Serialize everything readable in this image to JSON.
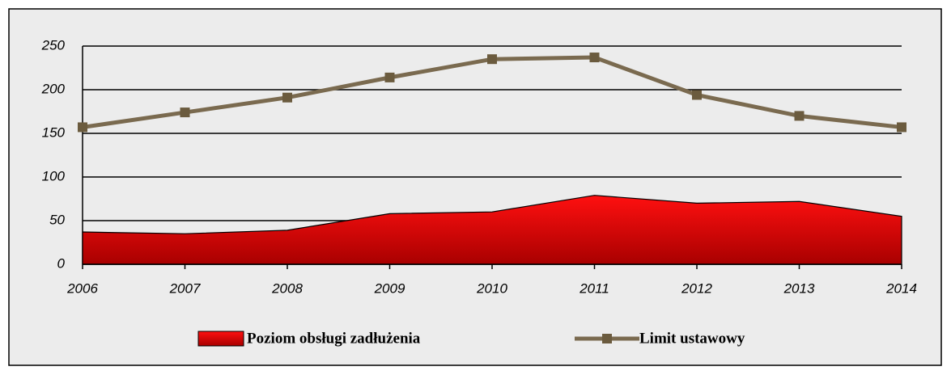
{
  "chart_data": {
    "type": "line",
    "categories": [
      "2006",
      "2007",
      "2008",
      "2009",
      "2010",
      "2011",
      "2012",
      "2013",
      "2014"
    ],
    "series": [
      {
        "name": "Poziom obsługi zadłużenia",
        "type": "area",
        "color": "#e00000",
        "values": [
          37,
          35,
          39,
          58,
          60,
          79,
          70,
          72,
          55
        ]
      },
      {
        "name": "Limit ustawowy",
        "type": "line",
        "color": "#7a6a4f",
        "values": [
          157,
          174,
          191,
          214,
          235,
          237,
          194,
          170,
          157
        ]
      }
    ],
    "ylim": [
      0,
      250
    ],
    "yticks": [
      0,
      50,
      100,
      150,
      200,
      250
    ],
    "grid": true,
    "legend": "bottom"
  }
}
